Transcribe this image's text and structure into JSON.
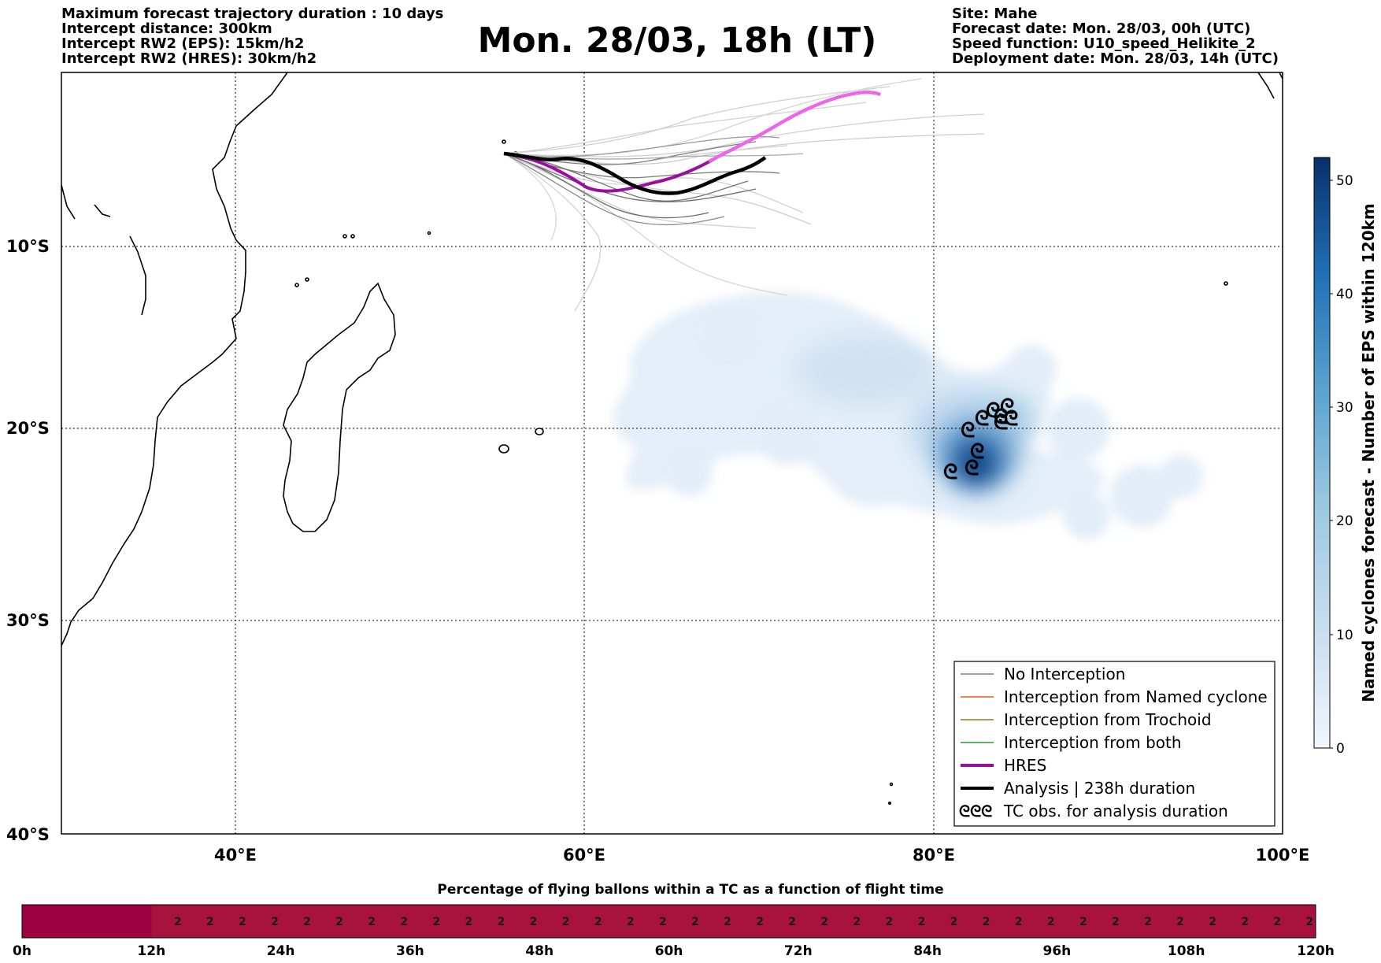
{
  "header_left": [
    "Maximum forecast trajectory duration : 10 days",
    "Intercept distance: 300km",
    "Intercept RW2 (EPS):  15km/h2",
    "Intercept RW2 (HRES): 30km/h2"
  ],
  "header_right": [
    "Site: Mahe",
    "Forecast date: Mon. 28/03, 00h (UTC)",
    "Speed function: U10_speed_Helikite_2",
    "Deployment date: Mon. 28/03, 14h (UTC)"
  ],
  "title": "Mon. 28/03, 18h (LT)",
  "map": {
    "lat_labels": [
      "10°S",
      "20°S",
      "30°S",
      "40°S"
    ],
    "lon_labels": [
      "40°E",
      "60°E",
      "80°E",
      "100°E"
    ],
    "gridlines": true
  },
  "legend": {
    "placement": "bottom-right",
    "items": [
      {
        "label": "No Interception",
        "color": "#808080",
        "kind": "line-thin"
      },
      {
        "label": "Interception from Named cyclone",
        "color": "#e8561f",
        "kind": "line-thin"
      },
      {
        "label": "Interception from Trochoid",
        "color": "#8c7b1f",
        "kind": "line-thin"
      },
      {
        "label": "Interception from both",
        "color": "#2e9a2e",
        "kind": "line-thin"
      },
      {
        "label": "HRES",
        "color": "#9b0fa0",
        "kind": "line-thick"
      },
      {
        "label": "Analysis | 238h duration",
        "color": "#000000",
        "kind": "line-thick"
      },
      {
        "label": "TC obs. for analysis duration",
        "color": "#000000",
        "kind": "tc-symbol",
        "symbol": "ᘓᘓᘓ"
      }
    ]
  },
  "colorbar": {
    "label": "Named cyclones forecast - Number of EPS within 120km",
    "ticks": [
      "0",
      "10",
      "20",
      "30",
      "40",
      "50"
    ],
    "max": 52,
    "colors": [
      "#e8f1fb",
      "#c6dbef",
      "#9ecae1",
      "#6baed6",
      "#3182bd",
      "#08306b"
    ]
  },
  "flight_strip": {
    "title": "Percentage of flying ballons within a TC as a function of flight time",
    "tick_labels": [
      "0h",
      "12h",
      "24h",
      "36h",
      "48h",
      "60h",
      "72h",
      "84h",
      "96h",
      "108h",
      "120h"
    ],
    "cell_value": "2",
    "color_dark": "#9e0142",
    "color_cell": "#a8123f"
  }
}
